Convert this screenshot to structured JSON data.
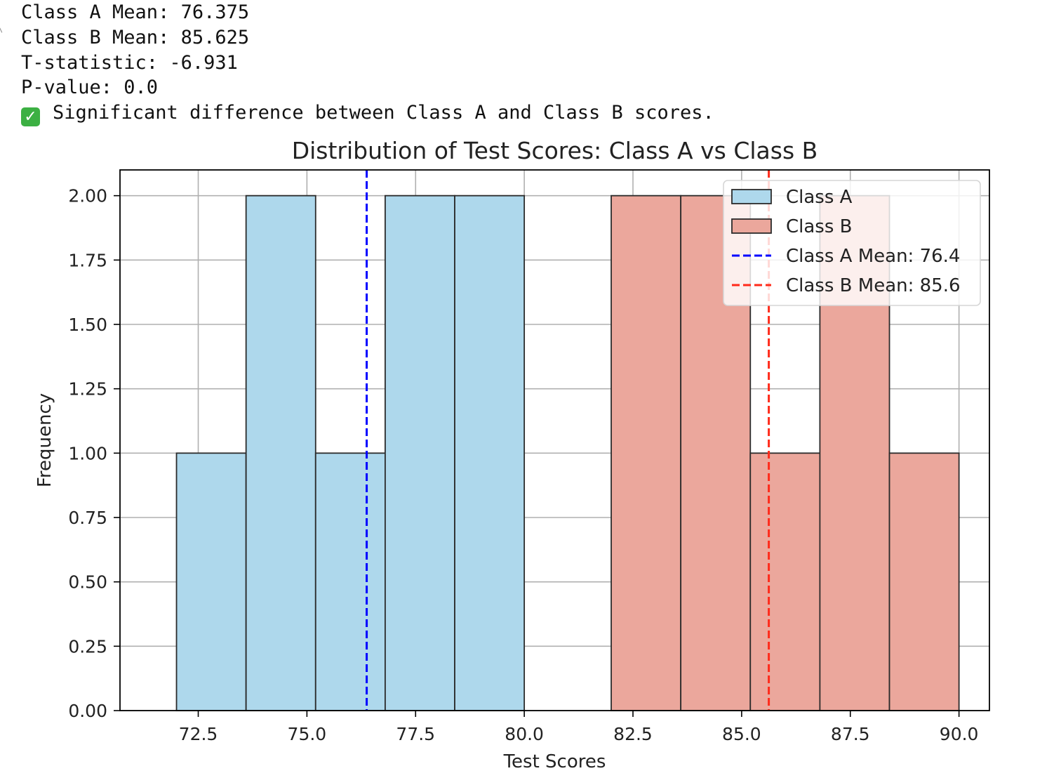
{
  "output": {
    "class_a_mean": "Class A Mean: 76.375",
    "class_b_mean": "Class B Mean: 85.625",
    "t_statistic": "T-statistic: -6.931",
    "p_value": "P-value: 0.0",
    "conclusion_icon": "check-mark-icon",
    "conclusion": "Significant difference between Class A and Class B scores."
  },
  "chart_data": {
    "type": "bar",
    "title": "Distribution of Test Scores: Class A vs Class B",
    "xlabel": "Test Scores",
    "ylabel": "Frequency",
    "xlim": [
      70.7,
      90.7
    ],
    "ylim": [
      0,
      2.1
    ],
    "xticks": [
      "72.5",
      "75.0",
      "77.5",
      "80.0",
      "82.5",
      "85.0",
      "87.5",
      "90.0"
    ],
    "xtick_values": [
      72.5,
      75.0,
      77.5,
      80.0,
      82.5,
      85.0,
      87.5,
      90.0
    ],
    "yticks": [
      "0.00",
      "0.25",
      "0.50",
      "0.75",
      "1.00",
      "1.25",
      "1.50",
      "1.75",
      "2.00"
    ],
    "ytick_values": [
      0,
      0.25,
      0.5,
      0.75,
      1.0,
      1.25,
      1.5,
      1.75,
      2.0
    ],
    "grid": true,
    "legend_position": "top-right",
    "series": [
      {
        "name": "Class A",
        "color": "#aed8ec",
        "bins": [
          {
            "start": 72.0,
            "end": 73.6,
            "count": 1
          },
          {
            "start": 73.6,
            "end": 75.2,
            "count": 2
          },
          {
            "start": 75.2,
            "end": 76.8,
            "count": 1
          },
          {
            "start": 76.8,
            "end": 78.4,
            "count": 2
          },
          {
            "start": 78.4,
            "end": 80.0,
            "count": 2
          }
        ]
      },
      {
        "name": "Class B",
        "color": "#eba79c",
        "bins": [
          {
            "start": 82.0,
            "end": 83.6,
            "count": 2
          },
          {
            "start": 83.6,
            "end": 85.2,
            "count": 2
          },
          {
            "start": 85.2,
            "end": 86.8,
            "count": 1
          },
          {
            "start": 86.8,
            "end": 88.4,
            "count": 2
          },
          {
            "start": 88.4,
            "end": 90.0,
            "count": 1
          }
        ]
      }
    ],
    "mean_lines": [
      {
        "name": "Class A Mean: 76.4",
        "value": 76.375,
        "color": "#0000ff"
      },
      {
        "name": "Class B Mean: 85.6",
        "value": 85.625,
        "color": "#ff2a1a"
      }
    ]
  }
}
